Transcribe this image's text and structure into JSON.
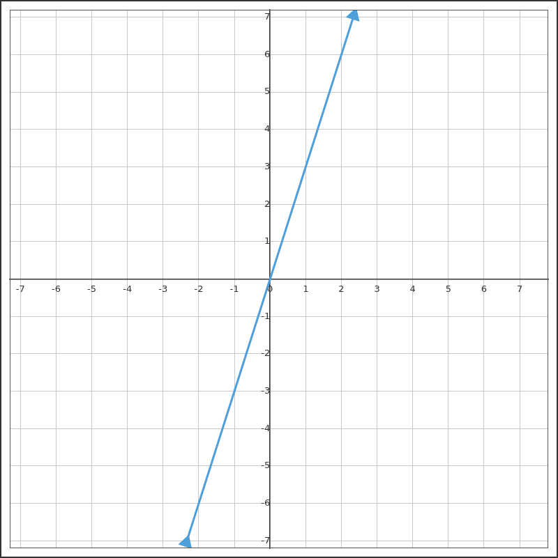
{
  "chart_data": {
    "type": "line",
    "series": [
      {
        "x": [
          -2.35,
          2.35
        ],
        "values": [
          -7.05,
          7.05
        ],
        "color": "#4f9fd8",
        "marker": "arrow"
      }
    ],
    "xlim": [
      -7.3,
      7.8
    ],
    "ylim": [
      -7.2,
      7.2
    ],
    "xticks": [
      -7,
      -6,
      -5,
      -4,
      -3,
      -2,
      -1,
      0,
      1,
      2,
      3,
      4,
      5,
      6,
      7
    ],
    "yticks": [
      -7,
      -6,
      -5,
      -4,
      -3,
      -2,
      -1,
      1,
      2,
      3,
      4,
      5,
      6,
      7
    ],
    "grid": true
  }
}
